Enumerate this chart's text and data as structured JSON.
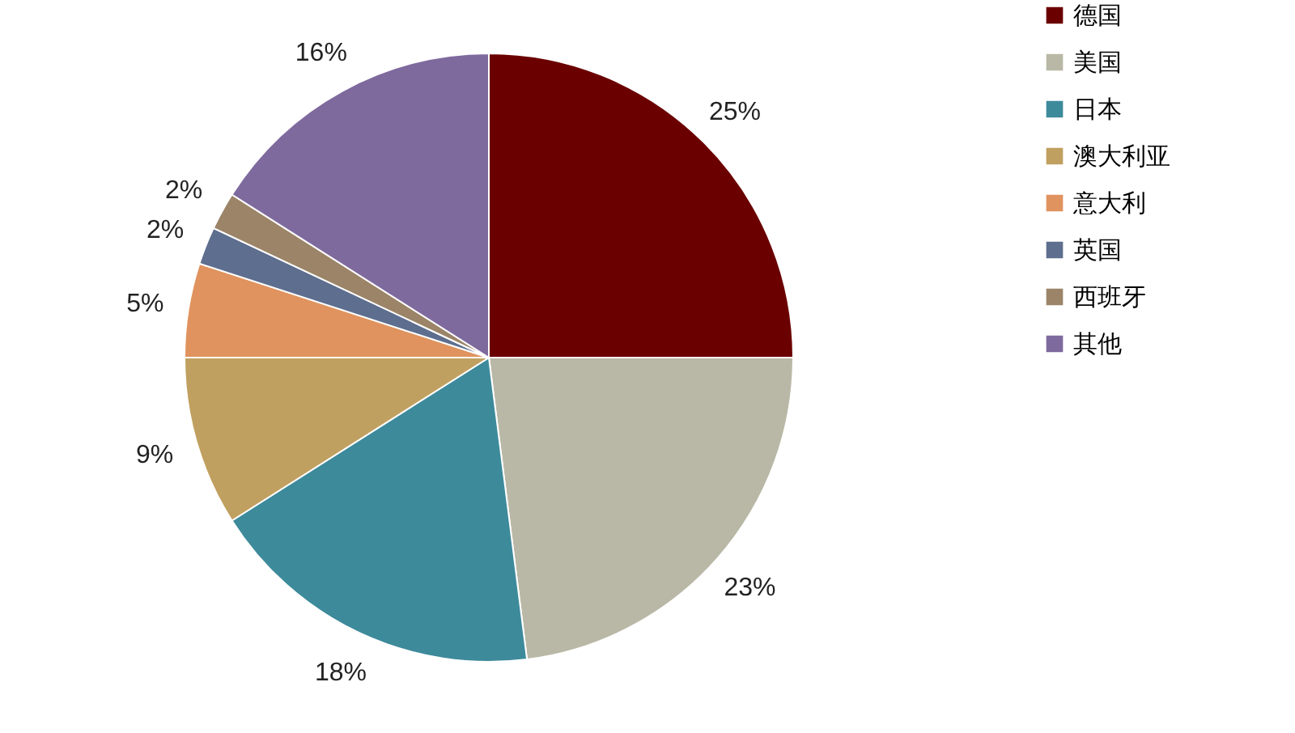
{
  "chart_data": {
    "type": "pie",
    "categories": [
      "德国",
      "美国",
      "日本",
      "澳大利亚",
      "意大利",
      "英国",
      "西班牙",
      "其他"
    ],
    "values": [
      25,
      23,
      18,
      9,
      5,
      2,
      2,
      16
    ],
    "colors": [
      "#6b0000",
      "#b9b8a6",
      "#3d8a9b",
      "#c0a060",
      "#e0935e",
      "#5e6e8e",
      "#9b8468",
      "#7f6a9e"
    ],
    "value_labels": [
      "25%",
      "23%",
      "18%",
      "9%",
      "5%",
      "2%",
      "2%",
      "16%"
    ],
    "legend": "right"
  }
}
